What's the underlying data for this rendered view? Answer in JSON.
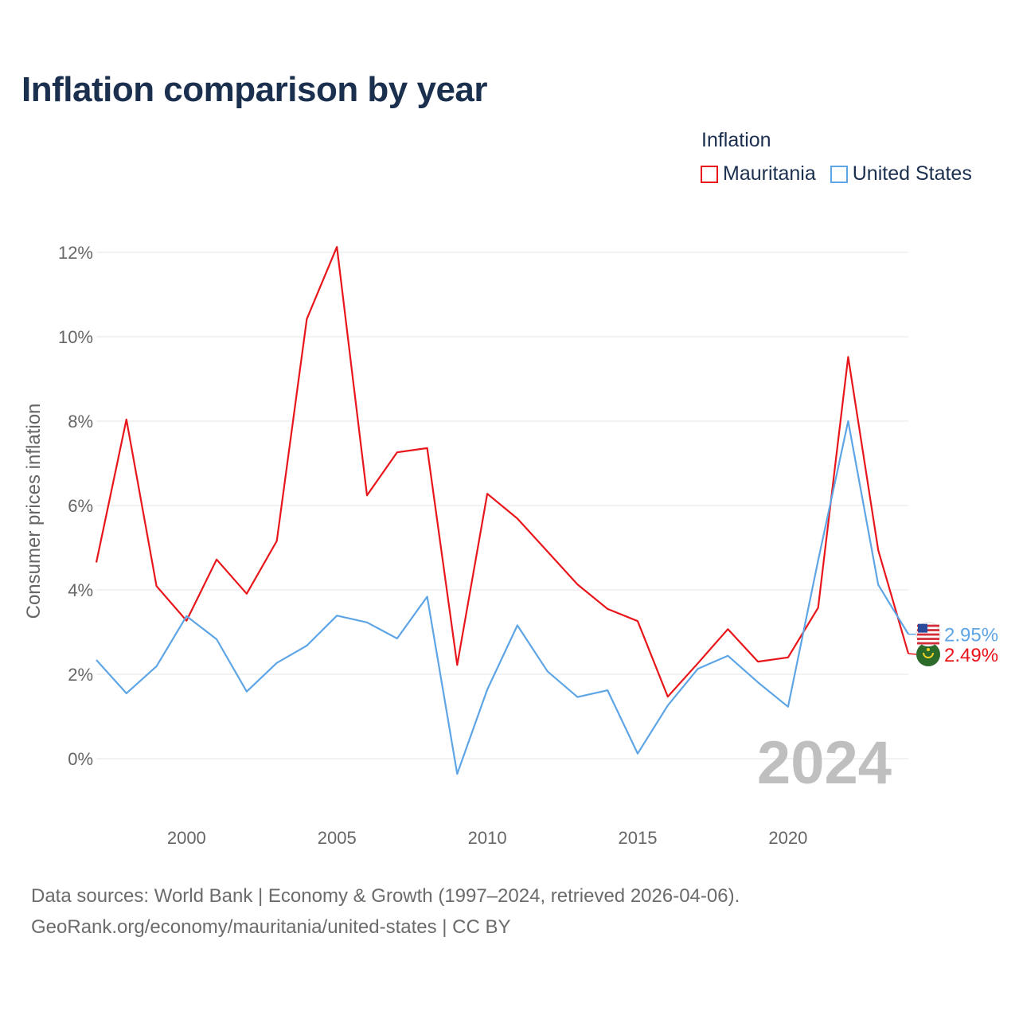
{
  "title": "Inflation comparison by year",
  "legend": {
    "title": "Inflation",
    "items": [
      {
        "label": "Mauritania",
        "color": "#e8161b"
      },
      {
        "label": "United States",
        "color": "#5ea5e6"
      }
    ]
  },
  "footer": {
    "line1": "Data sources: World Bank | Economy & Growth (1997–2024, retrieved 2026-04-06).",
    "line2": "GeoRank.org/economy/mauritania/united-states | CC BY"
  },
  "chart_data": {
    "type": "line",
    "title": "Inflation comparison by year",
    "xlabel": "",
    "ylabel": "Consumer prices inflation",
    "x": [
      1997,
      1998,
      1999,
      2000,
      2001,
      2002,
      2003,
      2004,
      2005,
      2006,
      2007,
      2008,
      2009,
      2010,
      2011,
      2012,
      2013,
      2014,
      2015,
      2016,
      2017,
      2018,
      2019,
      2020,
      2021,
      2022,
      2023,
      2024
    ],
    "xlim": [
      1997,
      2024
    ],
    "ylim": [
      -1.5,
      12.5
    ],
    "x_ticks": [
      2000,
      2005,
      2010,
      2015,
      2020
    ],
    "y_ticks": [
      0,
      2,
      4,
      6,
      8,
      10,
      12
    ],
    "y_tick_labels": [
      "0%",
      "2%",
      "4%",
      "6%",
      "8%",
      "10%",
      "12%"
    ],
    "x_tick_labels": [
      "2000",
      "2005",
      "2010",
      "2015",
      "2020"
    ],
    "grid": true,
    "year_watermark": "2024",
    "series": [
      {
        "name": "Mauritania",
        "color": "#e8161b",
        "values": [
          4.65,
          8.04,
          4.09,
          3.27,
          4.72,
          3.91,
          5.16,
          10.42,
          12.13,
          6.24,
          7.26,
          7.36,
          2.22,
          6.28,
          5.69,
          4.91,
          4.13,
          3.55,
          3.26,
          1.47,
          2.26,
          3.07,
          2.3,
          2.4,
          3.58,
          9.52,
          4.94,
          2.49
        ],
        "end_label": "2.49%"
      },
      {
        "name": "United States",
        "color": "#5ea5e6",
        "values": [
          2.34,
          1.55,
          2.19,
          3.38,
          2.83,
          1.59,
          2.27,
          2.68,
          3.39,
          3.23,
          2.85,
          3.84,
          -0.36,
          1.64,
          3.16,
          2.07,
          1.46,
          1.62,
          0.12,
          1.26,
          2.13,
          2.44,
          1.81,
          1.23,
          4.7,
          8.0,
          4.12,
          2.95
        ],
        "end_label": "2.95%"
      }
    ]
  }
}
